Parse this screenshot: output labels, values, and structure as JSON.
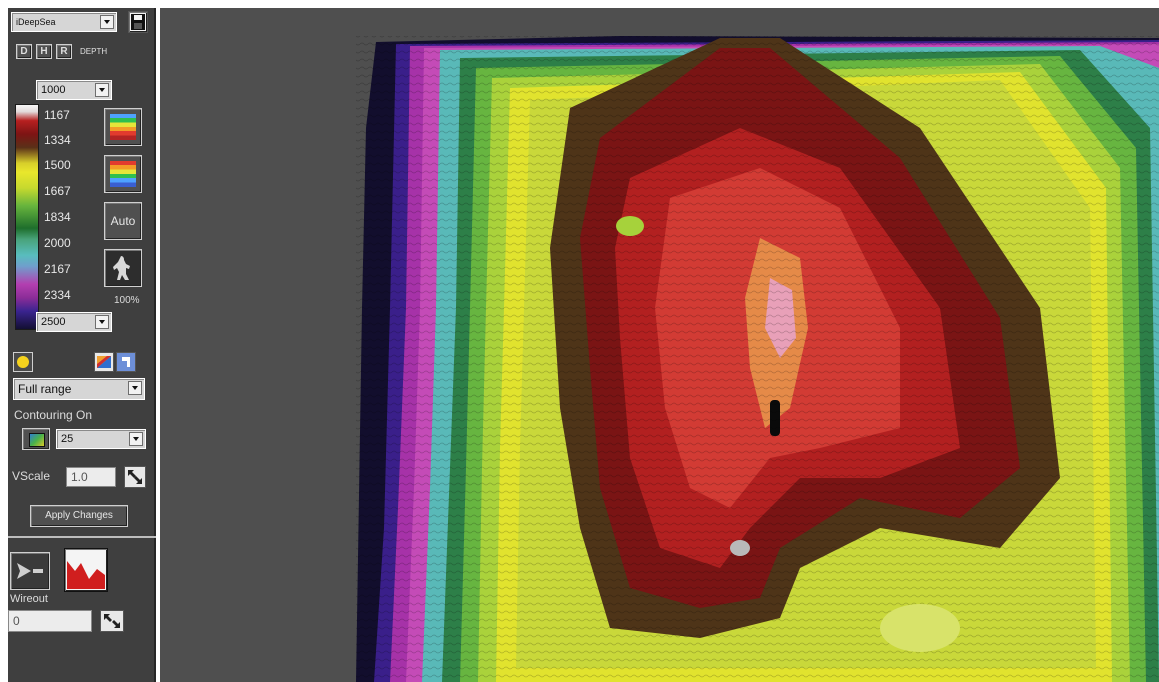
{
  "app": {
    "palette_name": "iDeepSea",
    "depth_mode_buttons": [
      "D",
      "H",
      "R"
    ],
    "depth_label": "DEPTH",
    "depth_min": "1000",
    "depth_max": "2500",
    "scale_ticks": [
      "1167",
      "1334",
      "1500",
      "1667",
      "1834",
      "2000",
      "2167",
      "2334"
    ],
    "auto_label": "Auto",
    "zoom_percent": "100%",
    "range_mode": "Full range",
    "contouring_label": "Contouring On",
    "contour_interval": "25",
    "vscale_label": "VScale",
    "vscale_value": "1.0",
    "apply_label": "Apply Changes",
    "wireout_label": "Wireout",
    "wireout_value": "0"
  },
  "colors": {
    "panel_bg": "#3f3f3f",
    "map_bg": "#4f4f4f",
    "seafloor_deep": "#130f33",
    "seafloor_shallow": "#b72020"
  },
  "icons": {
    "save": "floppy-disk-icon",
    "palette_a": "rainbow-palette-icon",
    "palette_b": "rainbow-palette-inverted-icon",
    "profile": "diver-silhouette-icon",
    "sun": "sun-icon",
    "moon": "moon-icon",
    "color_edit": "color-swatch-icon",
    "tool": "tool-icon",
    "contour": "contour-swatch-icon",
    "expand": "expand-arrows-icon",
    "boat": "boat-icon",
    "profile_chart": "depth-profile-icon"
  }
}
